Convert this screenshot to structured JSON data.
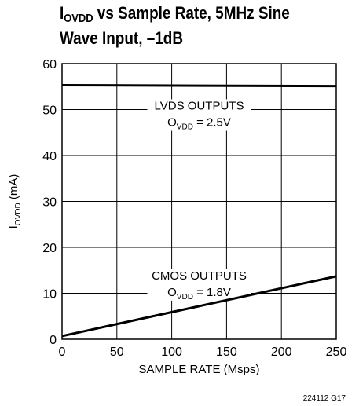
{
  "chart_data": {
    "type": "line",
    "title": {
      "sym": "I",
      "sub": "OVDD",
      "line1_rest": " vs Sample Rate, 5MHz Sine",
      "line2": "Wave Input, –1dB"
    },
    "xlabel": "SAMPLE RATE (Msps)",
    "ylabel": {
      "sym": "I",
      "sub": "OVDD",
      "rest": " (mA)"
    },
    "xlim": [
      0,
      250
    ],
    "ylim": [
      0,
      60
    ],
    "xticks": [
      0,
      50,
      100,
      150,
      200,
      250
    ],
    "yticks": [
      0,
      10,
      20,
      30,
      40,
      50,
      60
    ],
    "grid": true,
    "series": [
      {
        "x": [
          0,
          250
        ],
        "y": [
          55.3,
          55.1
        ]
      },
      {
        "x": [
          0,
          250
        ],
        "y": [
          0.7,
          13.7
        ]
      }
    ],
    "annotations": [
      {
        "x": 125,
        "y": 50,
        "line1": "LVDS OUTPUTS",
        "sym": "O",
        "sub": "VDD",
        "rest": " = 2.5V"
      },
      {
        "x": 125,
        "y": 13,
        "line1": "CMOS OUTPUTS",
        "sym": "O",
        "sub": "VDD",
        "rest": " = 1.8V"
      }
    ],
    "figure_id": "224112 G17"
  }
}
